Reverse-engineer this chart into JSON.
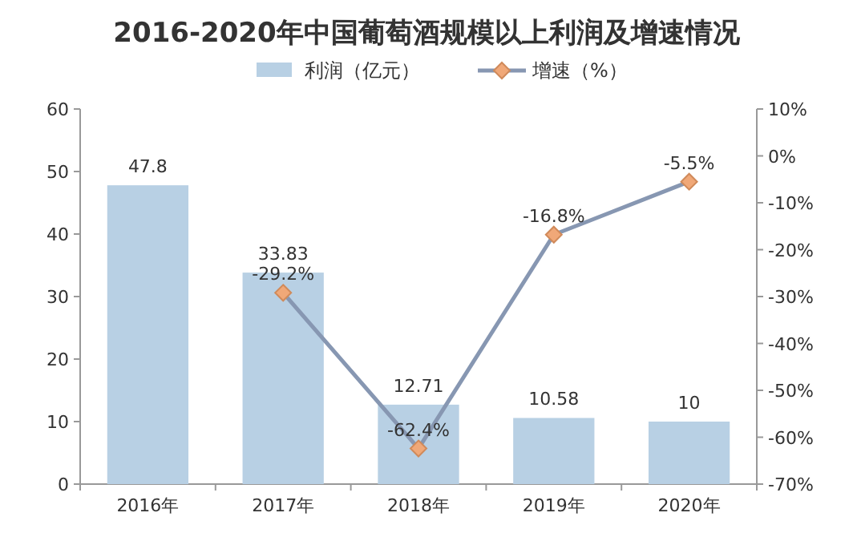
{
  "chart_data": {
    "type": "bar",
    "title": "2016-2020年中国葡萄酒规模以上利润及增速情况",
    "categories": [
      "2016年",
      "2017年",
      "2018年",
      "2019年",
      "2020年"
    ],
    "series": [
      {
        "name": "利润（亿元）",
        "color": "#b8d0e4",
        "values": [
          47.8,
          33.83,
          12.71,
          10.58,
          10
        ],
        "value_labels": [
          "47.8",
          "33.83",
          "12.71",
          "10.58",
          "10"
        ]
      },
      {
        "name": "增速（%）",
        "type": "line",
        "axis": "y2",
        "color": "#8797b2",
        "colors": [
          null,
          "#f0a878",
          "#f0a878",
          "#f0a878",
          "#f0a878"
        ],
        "values": [
          null,
          -29.2,
          -62.4,
          -16.8,
          -5.5
        ],
        "value_labels": [
          null,
          "-29.2%",
          "-62.4%",
          "-16.8%",
          "-5.5%"
        ]
      }
    ],
    "ylim": [
      0,
      60
    ],
    "yticks": [
      0,
      10,
      20,
      30,
      40,
      50,
      60
    ],
    "y2lim": [
      -70,
      10
    ],
    "y2ticks": [
      {
        "value": 10,
        "label": "10%"
      },
      {
        "value": 0,
        "label": "0%"
      },
      {
        "value": -10,
        "label": "-10%"
      },
      {
        "value": -20,
        "label": "-20%"
      },
      {
        "value": -30,
        "label": "-30%"
      },
      {
        "value": -40,
        "label": "-40%"
      },
      {
        "value": -50,
        "label": "-50%"
      },
      {
        "value": -60,
        "label": "-60%"
      },
      {
        "value": -70,
        "label": "-70%"
      }
    ],
    "marker": "diamond",
    "legend": "top"
  }
}
